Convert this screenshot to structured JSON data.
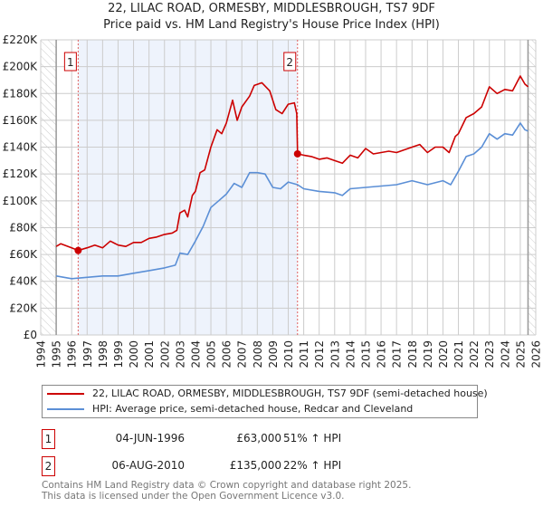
{
  "title": "22, LILAC ROAD, ORMESBY, MIDDLESBROUGH, TS7 9DF",
  "subtitle": "Price paid vs. HM Land Registry's House Price Index (HPI)",
  "colors": {
    "property": "#cc0000",
    "hpi": "#5b8fd6",
    "shade": "#eef3fc",
    "grid": "#cccccc"
  },
  "chart_data": {
    "type": "line",
    "xlim": [
      1994,
      2026
    ],
    "ylim": [
      0,
      220000
    ],
    "x_ticks": [
      "1994",
      "1995",
      "1996",
      "1997",
      "1998",
      "1999",
      "2000",
      "2001",
      "2002",
      "2003",
      "2004",
      "2005",
      "2006",
      "2007",
      "2008",
      "2009",
      "2010",
      "2011",
      "2012",
      "2013",
      "2014",
      "2015",
      "2016",
      "2017",
      "2018",
      "2019",
      "2020",
      "2021",
      "2022",
      "2023",
      "2024",
      "2025",
      "2026"
    ],
    "y_ticks": [
      {
        "v": 0,
        "label": "£0"
      },
      {
        "v": 20000,
        "label": "£20K"
      },
      {
        "v": 40000,
        "label": "£40K"
      },
      {
        "v": 60000,
        "label": "£60K"
      },
      {
        "v": 80000,
        "label": "£80K"
      },
      {
        "v": 100000,
        "label": "£100K"
      },
      {
        "v": 120000,
        "label": "£120K"
      },
      {
        "v": 140000,
        "label": "£140K"
      },
      {
        "v": 160000,
        "label": "£160K"
      },
      {
        "v": 180000,
        "label": "£180K"
      },
      {
        "v": 200000,
        "label": "£200K"
      },
      {
        "v": 220000,
        "label": "£220K"
      }
    ],
    "grid": true,
    "data_range": [
      1995,
      2025.5
    ],
    "shaded_range": [
      1996.42,
      2010.6
    ],
    "series": [
      {
        "name": "22, LILAC ROAD, ORMESBY, MIDDLESBROUGH, TS7 9DF (semi-detached house)",
        "color": "#cc0000",
        "x": [
          1995,
          1995.3,
          1996,
          1996.42,
          1997,
          1997.5,
          1998,
          1998.5,
          1999,
          1999.5,
          2000,
          2000.5,
          2001,
          2001.5,
          2002,
          2002.5,
          2002.8,
          2003,
          2003.3,
          2003.5,
          2003.8,
          2004,
          2004.3,
          2004.6,
          2005,
          2005.4,
          2005.7,
          2006,
          2006.4,
          2006.7,
          2007,
          2007.5,
          2007.8,
          2008.3,
          2008.8,
          2009.2,
          2009.6,
          2010,
          2010.4,
          2010.55,
          2010.6,
          2011,
          2011.5,
          2012,
          2012.5,
          2013,
          2013.5,
          2014,
          2014.5,
          2015,
          2015.5,
          2016,
          2016.5,
          2017,
          2017.5,
          2018,
          2018.5,
          2019,
          2019.5,
          2020,
          2020.4,
          2020.8,
          2021,
          2021.5,
          2022,
          2022.5,
          2023,
          2023.5,
          2024,
          2024.5,
          2025,
          2025.3,
          2025.5
        ],
        "y": [
          66000,
          68000,
          65000,
          63000,
          65000,
          67000,
          65000,
          70000,
          67000,
          66000,
          69000,
          69000,
          72000,
          73000,
          75000,
          76000,
          78000,
          91000,
          93000,
          88000,
          104000,
          107000,
          121000,
          123000,
          140000,
          153000,
          150000,
          158000,
          175000,
          160000,
          170000,
          178000,
          186000,
          188000,
          182000,
          168000,
          165000,
          172000,
          173000,
          165000,
          135000,
          134000,
          133000,
          131000,
          132000,
          130000,
          128000,
          134000,
          132000,
          139000,
          135000,
          136000,
          137000,
          136000,
          138000,
          140000,
          142000,
          136000,
          140000,
          140000,
          136000,
          148000,
          150000,
          162000,
          165000,
          170000,
          185000,
          180000,
          183000,
          182000,
          193000,
          187000,
          185000
        ]
      },
      {
        "name": "HPI: Average price, semi-detached house, Redcar and Cleveland",
        "color": "#5b8fd6",
        "x": [
          1995,
          1996,
          1997,
          1998,
          1999,
          2000,
          2001,
          2002,
          2002.7,
          2003,
          2003.5,
          2004,
          2004.5,
          2005,
          2005.5,
          2006,
          2006.5,
          2007,
          2007.5,
          2008,
          2008.5,
          2009,
          2009.5,
          2010,
          2010.6,
          2011,
          2012,
          2013,
          2013.5,
          2014,
          2015,
          2016,
          2017,
          2018,
          2019,
          2020,
          2020.5,
          2021,
          2021.5,
          2022,
          2022.5,
          2023,
          2023.5,
          2024,
          2024.5,
          2025,
          2025.3,
          2025.5
        ],
        "y": [
          44000,
          42000,
          43000,
          44000,
          44000,
          46000,
          48000,
          50000,
          52000,
          61000,
          60000,
          70000,
          81000,
          95000,
          100000,
          105000,
          113000,
          110000,
          121000,
          121000,
          120000,
          110000,
          109000,
          114000,
          112000,
          109000,
          107000,
          106000,
          104000,
          109000,
          110000,
          111000,
          112000,
          115000,
          112000,
          115000,
          112000,
          122000,
          133000,
          135000,
          140000,
          150000,
          146000,
          150000,
          149000,
          158000,
          153000,
          152000
        ]
      }
    ],
    "sales": [
      {
        "id": "1",
        "x": 1996.42,
        "y": 63000
      },
      {
        "id": "2",
        "x": 2010.6,
        "y": 135000
      }
    ]
  },
  "legend": {
    "property": "22, LILAC ROAD, ORMESBY, MIDDLESBROUGH, TS7 9DF (semi-detached house)",
    "hpi": "HPI: Average price, semi-detached house, Redcar and Cleveland"
  },
  "transactions": [
    {
      "id": "1",
      "date": "04-JUN-1996",
      "price": "£63,000",
      "hpi": "51% ↑ HPI"
    },
    {
      "id": "2",
      "date": "06-AUG-2010",
      "price": "£135,000",
      "hpi": "22% ↑ HPI"
    }
  ],
  "footer": {
    "line1": "Contains HM Land Registry data © Crown copyright and database right 2025.",
    "line2": "This data is licensed under the Open Government Licence v3.0."
  }
}
